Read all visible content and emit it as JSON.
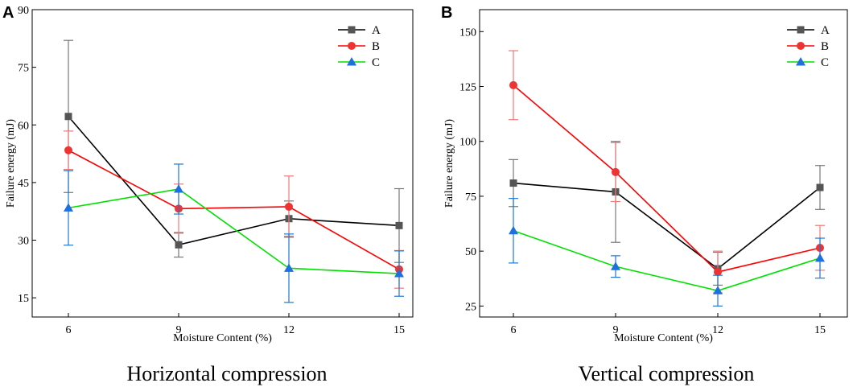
{
  "chart_data": [
    {
      "panel": "A",
      "type": "line",
      "title": "Horizontal compression",
      "xlabel": "Moisture Content (%)",
      "ylabel": "Failure energy (mJ)",
      "x": [
        6,
        9,
        12,
        15
      ],
      "x_ticks": [
        "6",
        "9",
        "12",
        "15"
      ],
      "ylim": [
        10,
        90
      ],
      "y_ticks": [
        "15",
        "30",
        "45",
        "60",
        "75",
        "90"
      ],
      "legend_position": "top-right",
      "series": [
        {
          "name": "A",
          "color": "#000000",
          "marker": "square",
          "values": [
            62.2,
            28.8,
            35.6,
            33.8
          ],
          "errors": [
            19.8,
            3.2,
            4.6,
            9.6
          ]
        },
        {
          "name": "B",
          "color": "#ff0000",
          "marker": "circle",
          "values": [
            53.4,
            38.2,
            38.7,
            22.4
          ],
          "errors": [
            5.0,
            6.4,
            8.0,
            4.9
          ]
        },
        {
          "name": "C",
          "color": "#00e000",
          "marker": "triangle",
          "error_color": "#1e78d7",
          "values": [
            38.4,
            43.3,
            22.7,
            21.3
          ],
          "errors": [
            9.7,
            6.5,
            8.9,
            5.9
          ]
        }
      ]
    },
    {
      "panel": "B",
      "type": "line",
      "title": "Vertical compression",
      "xlabel": "Moisture Content (%)",
      "ylabel": "Failure energy (mJ)",
      "x": [
        6,
        9,
        12,
        15
      ],
      "x_ticks": [
        "6",
        "9",
        "12",
        "15"
      ],
      "ylim": [
        20,
        160
      ],
      "y_ticks": [
        "25",
        "50",
        "75",
        "100",
        "125",
        "150"
      ],
      "legend_position": "top-right",
      "series": [
        {
          "name": "A",
          "color": "#000000",
          "marker": "square",
          "values": [
            81,
            77,
            42,
            79
          ],
          "errors": [
            10.7,
            23,
            7.5,
            10
          ]
        },
        {
          "name": "B",
          "color": "#ff0000",
          "marker": "circle",
          "values": [
            125.6,
            86,
            40.5,
            51.5
          ],
          "errors": [
            15.7,
            13.4,
            9.5,
            10.2
          ]
        },
        {
          "name": "C",
          "color": "#00e000",
          "marker": "triangle",
          "error_color": "#1e78d7",
          "values": [
            59.3,
            43,
            32,
            46.8
          ],
          "errors": [
            14.7,
            4.9,
            7,
            9.1
          ]
        }
      ]
    }
  ]
}
